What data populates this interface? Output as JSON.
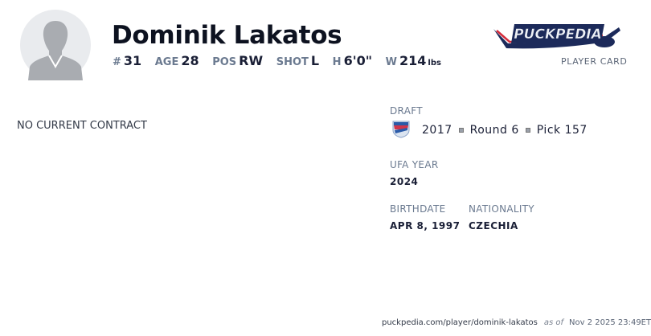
{
  "player": {
    "name": "Dominik Lakatos"
  },
  "stats": [
    {
      "label": "#",
      "value": "31"
    },
    {
      "label": "AGE",
      "value": "28"
    },
    {
      "label": "POS",
      "value": "RW"
    },
    {
      "label": "SHOT",
      "value": "L"
    },
    {
      "label": "H",
      "value": "6'0\""
    },
    {
      "label": "W",
      "value": "214",
      "unit": "lbs"
    }
  ],
  "brand": {
    "logo_text": "PuckPedia",
    "subtitle": "PLAYER CARD"
  },
  "contract": {
    "status": "NO CURRENT CONTRACT"
  },
  "draft": {
    "label": "DRAFT",
    "team_logo": "new-york-rangers-logo",
    "year": "2017",
    "round": "Round 6",
    "pick": "Pick 157"
  },
  "ufa": {
    "label": "UFA YEAR",
    "value": "2024"
  },
  "birthdate": {
    "label": "BIRTHDATE",
    "value": "APR 8, 1997"
  },
  "nationality": {
    "label": "NATIONALITY",
    "value": "CZECHIA"
  },
  "footer": {
    "url": "puckpedia.com/player/dominik-lakatos",
    "as_of": "as of",
    "timestamp": "Nov 2 2025 23:49ET"
  }
}
